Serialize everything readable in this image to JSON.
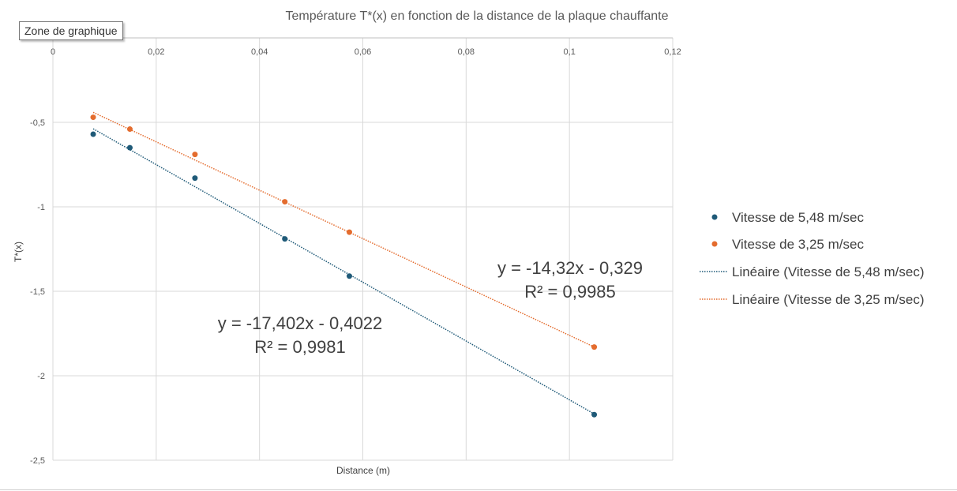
{
  "tooltip": {
    "text": "Zone de graphique"
  },
  "chart_data": {
    "type": "scatter",
    "title": "Température T*(x) en fonction de la distance de la plaque chauffante",
    "xlabel": "Distance (m)",
    "ylabel": "T*(x)",
    "xlim": [
      0,
      0.12
    ],
    "ylim": [
      -2.5,
      0
    ],
    "x_axis_position": "top",
    "x_ticks": [
      0,
      0.02,
      0.04,
      0.06,
      0.08,
      0.1,
      0.12
    ],
    "x_tick_labels": [
      "0",
      "0,02",
      "0,04",
      "0,06",
      "0,08",
      "0,1",
      "0,12"
    ],
    "y_ticks": [
      -0.5,
      -1,
      -1.5,
      -2,
      -2.5
    ],
    "y_tick_labels": [
      "-0,5",
      "-1",
      "-1,5",
      "-2",
      "-2,5"
    ],
    "grid": true,
    "legend_position": "right",
    "series": [
      {
        "name": "Vitesse de 5,48 m/sec",
        "color": "#1f5a78",
        "x": [
          0.0078,
          0.0149,
          0.0275,
          0.0449,
          0.0574,
          0.1048
        ],
        "y": [
          -0.57,
          -0.65,
          -0.83,
          -1.19,
          -1.41,
          -2.23
        ],
        "trendline": {
          "name": "Linéaire (Vitesse de 5,48 m/sec)",
          "slope": -17.402,
          "intercept": -0.4022,
          "equation": "y = -17,402x - 0,4022",
          "r2_label": "R² = 0,9981"
        }
      },
      {
        "name": "Vitesse de 3,25 m/sec",
        "color": "#e46c2e",
        "x": [
          0.0078,
          0.0149,
          0.0275,
          0.0449,
          0.0574,
          0.1048
        ],
        "y": [
          -0.47,
          -0.54,
          -0.69,
          -0.97,
          -1.15,
          -1.83
        ],
        "trendline": {
          "name": "Linéaire (Vitesse de 3,25 m/sec)",
          "slope": -14.32,
          "intercept": -0.329,
          "equation": "y = -14,32x - 0,329",
          "r2_label": "R² = 0,9985"
        }
      }
    ]
  }
}
